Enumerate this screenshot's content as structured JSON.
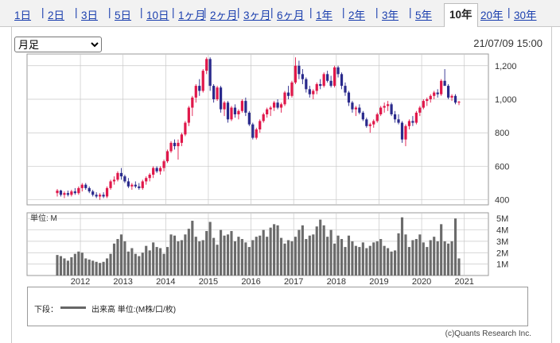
{
  "tabs": [
    "1日",
    "2日",
    "3日",
    "5日",
    "10日",
    "1ヶ月",
    "2ヶ月",
    "3ヶ月",
    "6ヶ月",
    "1年",
    "2年",
    "3年",
    "5年",
    "10年",
    "20年",
    "30年"
  ],
  "active_tab": "10年",
  "period_select": {
    "value": "月足",
    "options": [
      "月足"
    ]
  },
  "timestamp": "21/07/09 15:00",
  "legend": {
    "label": "下段：",
    "text": "出来高 単位:(M株/口/枚)"
  },
  "copyright": "(c)Quants Research Inc.",
  "colors": {
    "up": "#e0174a",
    "down": "#2a2a8c",
    "volume": "#6b6b6b",
    "grid": "#c8c8c8"
  },
  "chart_data": {
    "type": "candlestick",
    "price": {
      "ylim": [
        370,
        1270
      ],
      "yticks": [
        400,
        600,
        800,
        1000,
        1200
      ],
      "ytick_labels": [
        "400",
        "600",
        "800",
        "1,000",
        "1,200"
      ],
      "ohlc": [
        [
          440,
          465,
          420,
          455
        ],
        [
          455,
          460,
          420,
          430
        ],
        [
          430,
          450,
          410,
          440
        ],
        [
          440,
          455,
          420,
          430
        ],
        [
          430,
          460,
          420,
          450
        ],
        [
          450,
          470,
          430,
          440
        ],
        [
          440,
          480,
          430,
          470
        ],
        [
          470,
          500,
          450,
          490
        ],
        [
          490,
          500,
          460,
          470
        ],
        [
          470,
          480,
          440,
          450
        ],
        [
          450,
          460,
          420,
          430
        ],
        [
          430,
          445,
          410,
          420
        ],
        [
          420,
          440,
          400,
          430
        ],
        [
          430,
          445,
          410,
          420
        ],
        [
          420,
          480,
          410,
          470
        ],
        [
          470,
          520,
          460,
          510
        ],
        [
          510,
          540,
          490,
          520
        ],
        [
          520,
          570,
          510,
          560
        ],
        [
          560,
          590,
          520,
          540
        ],
        [
          540,
          550,
          500,
          510
        ],
        [
          510,
          530,
          470,
          480
        ],
        [
          480,
          500,
          460,
          490
        ],
        [
          490,
          510,
          470,
          480
        ],
        [
          480,
          500,
          460,
          470
        ],
        [
          470,
          520,
          460,
          510
        ],
        [
          510,
          540,
          490,
          530
        ],
        [
          530,
          560,
          510,
          550
        ],
        [
          550,
          600,
          530,
          590
        ],
        [
          590,
          600,
          560,
          570
        ],
        [
          570,
          600,
          550,
          590
        ],
        [
          590,
          640,
          570,
          630
        ],
        [
          630,
          700,
          620,
          690
        ],
        [
          690,
          750,
          680,
          740
        ],
        [
          740,
          760,
          700,
          720
        ],
        [
          720,
          760,
          640,
          740
        ],
        [
          740,
          800,
          720,
          790
        ],
        [
          790,
          870,
          780,
          860
        ],
        [
          860,
          960,
          840,
          950
        ],
        [
          950,
          1020,
          900,
          1010
        ],
        [
          1010,
          1090,
          980,
          1080
        ],
        [
          1080,
          1120,
          1020,
          1050
        ],
        [
          1050,
          1180,
          1040,
          1170
        ],
        [
          1170,
          1250,
          1150,
          1240
        ],
        [
          1240,
          1250,
          1050,
          1080
        ],
        [
          1080,
          1090,
          980,
          1000
        ],
        [
          1000,
          1080,
          990,
          1070
        ],
        [
          1070,
          1080,
          920,
          940
        ],
        [
          940,
          990,
          900,
          980
        ],
        [
          980,
          990,
          860,
          880
        ],
        [
          880,
          960,
          870,
          950
        ],
        [
          950,
          970,
          890,
          910
        ],
        [
          910,
          940,
          880,
          930
        ],
        [
          930,
          1000,
          920,
          990
        ],
        [
          990,
          1010,
          900,
          920
        ],
        [
          920,
          930,
          840,
          850
        ],
        [
          850,
          860,
          760,
          770
        ],
        [
          770,
          830,
          760,
          820
        ],
        [
          820,
          880,
          800,
          870
        ],
        [
          870,
          920,
          860,
          910
        ],
        [
          910,
          950,
          890,
          940
        ],
        [
          940,
          960,
          900,
          950
        ],
        [
          950,
          990,
          930,
          980
        ],
        [
          980,
          1000,
          940,
          950
        ],
        [
          950,
          980,
          920,
          970
        ],
        [
          970,
          1050,
          960,
          1040
        ],
        [
          1040,
          1080,
          1000,
          1020
        ],
        [
          1020,
          1110,
          1010,
          1100
        ],
        [
          1100,
          1250,
          1090,
          1200
        ],
        [
          1200,
          1230,
          1120,
          1150
        ],
        [
          1150,
          1180,
          1090,
          1120
        ],
        [
          1120,
          1130,
          1040,
          1060
        ],
        [
          1060,
          1080,
          1010,
          1030
        ],
        [
          1030,
          1060,
          1000,
          1050
        ],
        [
          1050,
          1100,
          1030,
          1090
        ],
        [
          1090,
          1120,
          1060,
          1080
        ],
        [
          1080,
          1160,
          1070,
          1150
        ],
        [
          1150,
          1170,
          1100,
          1110
        ],
        [
          1110,
          1140,
          1070,
          1080
        ],
        [
          1080,
          1200,
          1070,
          1190
        ],
        [
          1190,
          1200,
          1130,
          1150
        ],
        [
          1150,
          1160,
          1060,
          1080
        ],
        [
          1080,
          1100,
          1020,
          1040
        ],
        [
          1040,
          1050,
          960,
          980
        ],
        [
          980,
          990,
          920,
          940
        ],
        [
          940,
          960,
          900,
          950
        ],
        [
          950,
          970,
          910,
          920
        ],
        [
          920,
          930,
          870,
          880
        ],
        [
          880,
          890,
          830,
          840
        ],
        [
          840,
          860,
          800,
          850
        ],
        [
          850,
          880,
          830,
          870
        ],
        [
          870,
          920,
          860,
          910
        ],
        [
          910,
          960,
          900,
          950
        ],
        [
          950,
          980,
          920,
          960
        ],
        [
          960,
          990,
          930,
          970
        ],
        [
          970,
          980,
          900,
          910
        ],
        [
          910,
          930,
          860,
          880
        ],
        [
          880,
          910,
          850,
          860
        ],
        [
          860,
          870,
          740,
          760
        ],
        [
          760,
          850,
          720,
          840
        ],
        [
          840,
          880,
          820,
          870
        ],
        [
          870,
          900,
          840,
          860
        ],
        [
          860,
          930,
          850,
          920
        ],
        [
          920,
          960,
          900,
          950
        ],
        [
          950,
          1000,
          940,
          990
        ],
        [
          990,
          1010,
          960,
          1000
        ],
        [
          1000,
          1030,
          980,
          1020
        ],
        [
          1020,
          1050,
          1000,
          1040
        ],
        [
          1040,
          1060,
          1010,
          1030
        ],
        [
          1030,
          1120,
          1020,
          1110
        ],
        [
          1110,
          1180,
          1080,
          1080
        ],
        [
          1080,
          1090,
          1000,
          1010
        ],
        [
          1010,
          1030,
          990,
          1020
        ],
        [
          1020,
          1030,
          970,
          980
        ],
        [
          980,
          990,
          965,
          985
        ]
      ]
    },
    "volume": {
      "unit_label": "単位: M",
      "ylim": [
        0,
        5.5
      ],
      "yticks": [
        1,
        2,
        3,
        4,
        5
      ],
      "ytick_labels": [
        "1M",
        "2M",
        "3M",
        "4M",
        "5M"
      ],
      "values": [
        1.8,
        1.7,
        1.5,
        1.3,
        1.6,
        1.9,
        2.1,
        2.0,
        1.5,
        1.4,
        1.3,
        1.2,
        1.1,
        1.2,
        1.5,
        1.9,
        2.8,
        3.2,
        3.6,
        3.0,
        2.1,
        2.4,
        1.9,
        1.7,
        2.0,
        2.6,
        2.2,
        2.9,
        2.5,
        2.4,
        1.9,
        2.5,
        3.6,
        3.5,
        3.0,
        3.1,
        3.6,
        4.1,
        4.8,
        3.4,
        3.0,
        3.1,
        3.9,
        4.7,
        3.3,
        2.7,
        4.0,
        3.5,
        3.6,
        3.9,
        3.0,
        3.4,
        3.2,
        2.9,
        2.5,
        3.1,
        3.4,
        3.5,
        4.0,
        3.4,
        4.2,
        4.5,
        4.4,
        3.3,
        2.8,
        3.1,
        3.0,
        3.4,
        4.0,
        4.4,
        3.2,
        3.5,
        3.6,
        4.3,
        4.9,
        4.4,
        3.4,
        4.0,
        2.8,
        3.5,
        3.2,
        2.5,
        3.5,
        3.0,
        2.6,
        2.5,
        2.9,
        2.4,
        2.6,
        2.9,
        3.0,
        3.2,
        2.6,
        2.4,
        2.1,
        2.2,
        3.7,
        5.1,
        3.6,
        2.5,
        3.1,
        3.2,
        3.6,
        2.9,
        2.5,
        3.1,
        3.4,
        3.0,
        4.5,
        3.0,
        2.8,
        3.0,
        5.0,
        1.5
      ]
    },
    "x": {
      "start": "2011-06",
      "interval": "month",
      "year_ticks": [
        {
          "label": "2012",
          "index": 7
        },
        {
          "label": "2013",
          "index": 19
        },
        {
          "label": "2014",
          "index": 31
        },
        {
          "label": "2015",
          "index": 43
        },
        {
          "label": "2016",
          "index": 55
        },
        {
          "label": "2017",
          "index": 67
        },
        {
          "label": "2018",
          "index": 79
        },
        {
          "label": "2019",
          "index": 91
        },
        {
          "label": "2020",
          "index": 103
        },
        {
          "label": "2021",
          "index": 115
        }
      ]
    }
  }
}
